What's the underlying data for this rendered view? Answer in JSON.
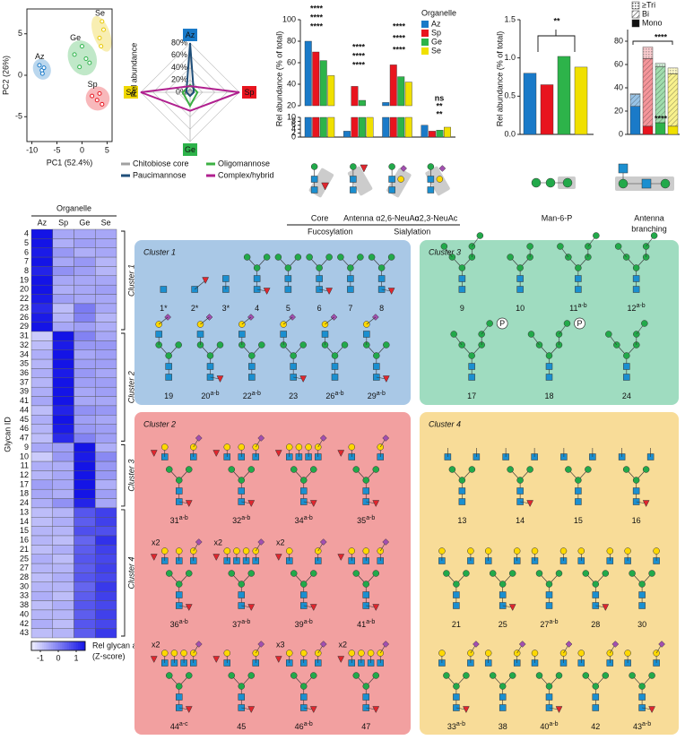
{
  "chart_data": [
    {
      "type": "scatter",
      "xlabel": "PC1 (52.4%)",
      "ylabel": "PC2 (26%)",
      "xlim": [
        -11,
        6
      ],
      "ylim": [
        -8,
        8
      ],
      "xticks": [
        -10,
        -5,
        0,
        5
      ],
      "yticks": [
        -5,
        0,
        5
      ],
      "series": [
        {
          "name": "Az",
          "color": "#1a7ac8",
          "x": [
            -8.5,
            -8,
            -7.6,
            -7.9
          ],
          "y": [
            1.2,
            0.6,
            0.9,
            0.2
          ]
        },
        {
          "name": "Ge",
          "color": "#2db34a",
          "x": [
            -1.5,
            0,
            0.8,
            1.5,
            -0.5
          ],
          "y": [
            2.5,
            3.5,
            2,
            1.5,
            1
          ]
        },
        {
          "name": "Se",
          "color": "#e8c800",
          "x": [
            3.5,
            4.3,
            4,
            3.8
          ],
          "y": [
            4.5,
            5.5,
            6.5,
            3.5
          ]
        },
        {
          "name": "Sp",
          "color": "#e8141e",
          "x": [
            2,
            3,
            3.5,
            4
          ],
          "y": [
            -2.5,
            -3,
            -2.2,
            -3.5
          ]
        }
      ]
    },
    {
      "type": "radar",
      "ylabel": "Rel abundance",
      "axes": [
        "Az",
        "Sp",
        "Ge",
        "Se"
      ],
      "axis_colors": [
        "#1a7ac8",
        "#e8141e",
        "#2db34a",
        "#f0d800"
      ],
      "rlim": [
        0,
        80
      ],
      "rticks": [
        {
          "value": 0,
          "label": "0%"
        },
        {
          "value": 20,
          "label": "20%"
        },
        {
          "value": 40,
          "label": "40%"
        },
        {
          "value": 60,
          "label": "60%"
        },
        {
          "value": 80,
          "label": "80%"
        }
      ],
      "series": [
        {
          "name": "Chitobiose core",
          "color": "#a0a0a0",
          "values": [
            5,
            5,
            5,
            5
          ]
        },
        {
          "name": "Oligomannose",
          "color": "#3cb043",
          "values": [
            12,
            12,
            22,
            12
          ]
        },
        {
          "name": "Paucimannose",
          "color": "#1f4e79",
          "values": [
            80,
            6,
            6,
            6
          ]
        },
        {
          "name": "Complex/hybrid",
          "color": "#b0208f",
          "values": [
            10,
            80,
            30,
            80
          ]
        }
      ]
    },
    {
      "type": "bar",
      "ylabel": "Rel abundance (% of total)",
      "legend_title": "Organelle",
      "legend": "upper right",
      "groups": [
        {
          "name": "Fucosylation",
          "categories": [
            "Core",
            "Antenna"
          ]
        },
        {
          "name": "Sialylation",
          "categories": [
            "α2,6-NeuAc",
            "α2,3-NeuAc"
          ]
        }
      ],
      "ylim": [
        [
          0,
          10
        ],
        [
          20,
          100
        ]
      ],
      "yticks": [
        [
          0,
          2,
          4,
          6,
          8,
          10
        ],
        [
          20,
          40,
          60,
          80,
          100
        ]
      ],
      "series": [
        {
          "name": "Az",
          "color": "#1a7ac8",
          "values": [
            80,
            3,
            23,
            6
          ]
        },
        {
          "name": "Sp",
          "color": "#e8141e",
          "values": [
            70,
            38,
            58,
            3
          ]
        },
        {
          "name": "Ge",
          "color": "#2db34a",
          "values": [
            62,
            25,
            47,
            3.5
          ]
        },
        {
          "name": "Se",
          "color": "#f0e000",
          "values": [
            48,
            20,
            42,
            5
          ]
        }
      ],
      "annotations": [
        "****",
        "****",
        "****",
        "****",
        "****",
        "****",
        "****",
        "****",
        "****",
        "ns",
        "**",
        "**"
      ]
    },
    {
      "type": "bar",
      "xlabel": "Man-6-P",
      "ylabel": "Rel abundance (% of total)",
      "values": [
        0.8,
        0.65,
        1.02,
        0.88
      ],
      "colors": [
        "#1a7ac8",
        "#e8141e",
        "#2db34a",
        "#f0e000"
      ],
      "ylim": [
        0,
        1.5
      ],
      "yticks": [
        {
          "value": 0,
          "label": "0.0"
        },
        0.5,
        {
          "value": 1,
          "label": "1.0"
        },
        1.5
      ],
      "annotations": [
        "**"
      ]
    },
    {
      "type": "stacked_bar",
      "xlabel": [
        "Antenna",
        "branching"
      ],
      "bar_colors": [
        "#1a7ac8",
        "#e8141e",
        "#2db34a",
        "#f0e000"
      ],
      "series": [
        {
          "name": "Mono",
          "values": [
            24,
            7,
            10,
            7
          ]
        },
        {
          "name": "Bi",
          "values": [
            10,
            58,
            48,
            45
          ]
        },
        {
          "name": "≥Tri",
          "values": [
            1,
            10,
            3,
            5
          ]
        }
      ],
      "ylim": [
        0,
        90
      ],
      "yticks": [
        0,
        20,
        40,
        60,
        80
      ],
      "annotations": [
        "****",
        "****"
      ]
    },
    {
      "type": "heatmap",
      "title": "Organelle",
      "ylabel": "Glycan ID",
      "columns": [
        "Az",
        "Sp",
        "Ge",
        "Se"
      ],
      "zlim": [
        -1.5,
        1.5
      ],
      "zticks": [
        -1,
        0,
        1
      ],
      "colormap": [
        "#f0f0ff",
        "#1414e6"
      ],
      "colorbar_label": [
        "Rel glycan abundance",
        "(Z-score)"
      ],
      "clusters": [
        {
          "name": "Cluster 1",
          "rows": [
            "4",
            "5",
            "6",
            "7",
            "8",
            "19",
            "20",
            "22",
            "23",
            "26",
            "29"
          ],
          "values": [
            [
              1.5,
              -0.5,
              -0.5,
              -0.5
            ],
            [
              1.5,
              -0.6,
              -0.4,
              -0.5
            ],
            [
              1.4,
              -0.3,
              -0.6,
              -0.5
            ],
            [
              1.5,
              -0.5,
              -0.3,
              -0.7
            ],
            [
              1.3,
              -0.2,
              -0.4,
              -0.7
            ],
            [
              1.5,
              -0.5,
              -0.5,
              -0.5
            ],
            [
              1.5,
              -0.6,
              -0.5,
              -0.4
            ],
            [
              1.4,
              -0.4,
              -0.5,
              -0.5
            ],
            [
              1.2,
              -0.8,
              0.1,
              -0.5
            ],
            [
              1.4,
              -0.7,
              0,
              -0.7
            ],
            [
              1.5,
              -0.5,
              -0.4,
              -0.6
            ]
          ]
        },
        {
          "name": "Cluster 2",
          "rows": [
            "31",
            "32",
            "34",
            "35",
            "36",
            "37",
            "39",
            "41",
            "44",
            "45",
            "46",
            "47"
          ],
          "values": [
            [
              -1,
              1.5,
              0,
              -0.5
            ],
            [
              -0.8,
              1.4,
              -0.3,
              -0.3
            ],
            [
              -0.6,
              1.5,
              -0.5,
              -0.4
            ],
            [
              -0.7,
              1.5,
              -0.4,
              -0.4
            ],
            [
              -0.6,
              1.4,
              -0.3,
              -0.5
            ],
            [
              -0.7,
              1.5,
              -0.4,
              -0.4
            ],
            [
              -0.6,
              1.5,
              -0.5,
              -0.4
            ],
            [
              -0.5,
              1.5,
              -0.5,
              -0.5
            ],
            [
              -0.8,
              1.3,
              -0.2,
              -0.3
            ],
            [
              -0.6,
              1.5,
              -0.4,
              -0.5
            ],
            [
              -0.7,
              1.4,
              -0.3,
              -0.4
            ],
            [
              -0.8,
              1.2,
              0,
              -0.4
            ]
          ]
        },
        {
          "name": "Cluster 3",
          "rows": [
            "9",
            "10",
            "11",
            "12",
            "17",
            "18",
            "24"
          ],
          "values": [
            [
              -0.5,
              -0.4,
              1.5,
              -0.6
            ],
            [
              -1,
              -0.3,
              1.4,
              -0.1
            ],
            [
              -0.6,
              -0.6,
              1.5,
              -0.3
            ],
            [
              -0.7,
              -0.5,
              1.5,
              -0.3
            ],
            [
              -0.4,
              -0.5,
              1.5,
              -0.6
            ],
            [
              -0.5,
              -0.6,
              1.5,
              -0.4
            ],
            [
              -0.6,
              -0.2,
              1.3,
              -0.5
            ]
          ]
        },
        {
          "name": "Cluster 4",
          "rows": [
            "13",
            "14",
            "15",
            "16",
            "21",
            "25",
            "27",
            "28",
            "30",
            "33",
            "38",
            "40",
            "42",
            "43"
          ],
          "values": [
            [
              -0.8,
              -0.7,
              0.6,
              0.9
            ],
            [
              -0.8,
              -0.6,
              0.5,
              0.9
            ],
            [
              -0.7,
              -0.7,
              0.7,
              0.7
            ],
            [
              -0.7,
              -0.8,
              0.4,
              1.1
            ],
            [
              -0.8,
              -0.6,
              0.5,
              0.9
            ],
            [
              -0.6,
              -0.8,
              0.6,
              0.8
            ],
            [
              -0.7,
              -0.7,
              0.5,
              0.9
            ],
            [
              -0.8,
              -0.6,
              0.6,
              0.8
            ],
            [
              -0.7,
              -0.7,
              0.4,
              1
            ],
            [
              -0.6,
              -0.8,
              0.5,
              0.9
            ],
            [
              -0.8,
              -0.6,
              0.6,
              0.8
            ],
            [
              -0.7,
              -0.7,
              0.5,
              0.9
            ],
            [
              -0.6,
              -0.8,
              0.6,
              0.8
            ],
            [
              -0.8,
              -0.7,
              0.5,
              1
            ]
          ]
        }
      ]
    }
  ],
  "glycan_clusters": [
    {
      "glycans": [
        {
          "id": "1*"
        },
        {
          "id": "2*"
        },
        {
          "id": "3*"
        },
        {
          "id": "4"
        },
        {
          "id": "5"
        },
        {
          "id": "6"
        },
        {
          "id": "7"
        },
        {
          "id": "8"
        },
        {
          "id": "19"
        },
        {
          "id": "20",
          "sup": "a-b"
        },
        {
          "id": "22",
          "sup": "a-b"
        },
        {
          "id": "23"
        },
        {
          "id": "26",
          "sup": "a-b"
        },
        {
          "id": "29",
          "sup": "a-b"
        }
      ]
    },
    {
      "glycans": [
        {
          "id": "31",
          "sup": "a-b"
        },
        {
          "id": "32",
          "sup": "a-b"
        },
        {
          "id": "34",
          "sup": "a-b"
        },
        {
          "id": "35",
          "sup": "a-b"
        },
        {
          "id": "36",
          "sup": "a-b",
          "mult": "x2"
        },
        {
          "id": "37",
          "sup": "a-b",
          "mult": "x2"
        },
        {
          "id": "39",
          "sup": "a-b",
          "mult": "x2"
        },
        {
          "id": "41",
          "sup": "a-b"
        },
        {
          "id": "44",
          "sup": "a-c",
          "mult": "x2"
        },
        {
          "id": "45"
        },
        {
          "id": "46",
          "sup": "a-b",
          "mult": "x3"
        },
        {
          "id": "47",
          "mult": "x2"
        }
      ]
    },
    {
      "glycans": [
        {
          "id": "9"
        },
        {
          "id": "10"
        },
        {
          "id": "11",
          "sup": "a-b"
        },
        {
          "id": "12",
          "sup": "a-b"
        },
        {
          "id": "17",
          "tag": "P"
        },
        {
          "id": "18",
          "tag": "P"
        },
        {
          "id": "24"
        }
      ]
    },
    {
      "glycans": [
        {
          "id": "13"
        },
        {
          "id": "14"
        },
        {
          "id": "15"
        },
        {
          "id": "16"
        },
        {
          "id": "21"
        },
        {
          "id": "25"
        },
        {
          "id": "27",
          "sup": "a-b"
        },
        {
          "id": "28"
        },
        {
          "id": "30"
        },
        {
          "id": "33",
          "sup": "a-b"
        },
        {
          "id": "38"
        },
        {
          "id": "40",
          "sup": "a-b"
        },
        {
          "id": "42"
        },
        {
          "id": "43",
          "sup": "a-b"
        }
      ]
    }
  ]
}
